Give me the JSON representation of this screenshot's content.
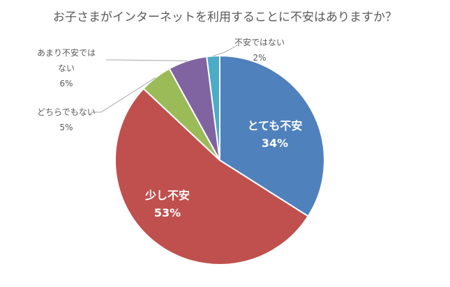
{
  "chart_data": {
    "type": "pie",
    "title": "お子さまがインターネットを利用することに不安はありますか？",
    "slices": [
      {
        "name": "とても不安",
        "value": 34,
        "pct_label": "34%",
        "color": "#4F81BD"
      },
      {
        "name": "少し不安",
        "value": 53,
        "pct_label": "53%",
        "color": "#C0504D"
      },
      {
        "name": "どちらでもない",
        "value": 5,
        "pct_label": "5%",
        "color": "#9BBB59"
      },
      {
        "name": "あまり不安ではない",
        "name_lines": [
          "あまり不安では",
          "ない"
        ],
        "value": 6,
        "pct_label": "6%",
        "color": "#8064A2"
      },
      {
        "name": "不安ではない",
        "value": 2,
        "pct_label": "2%",
        "color": "#4BACC6"
      }
    ],
    "legend": "none"
  }
}
